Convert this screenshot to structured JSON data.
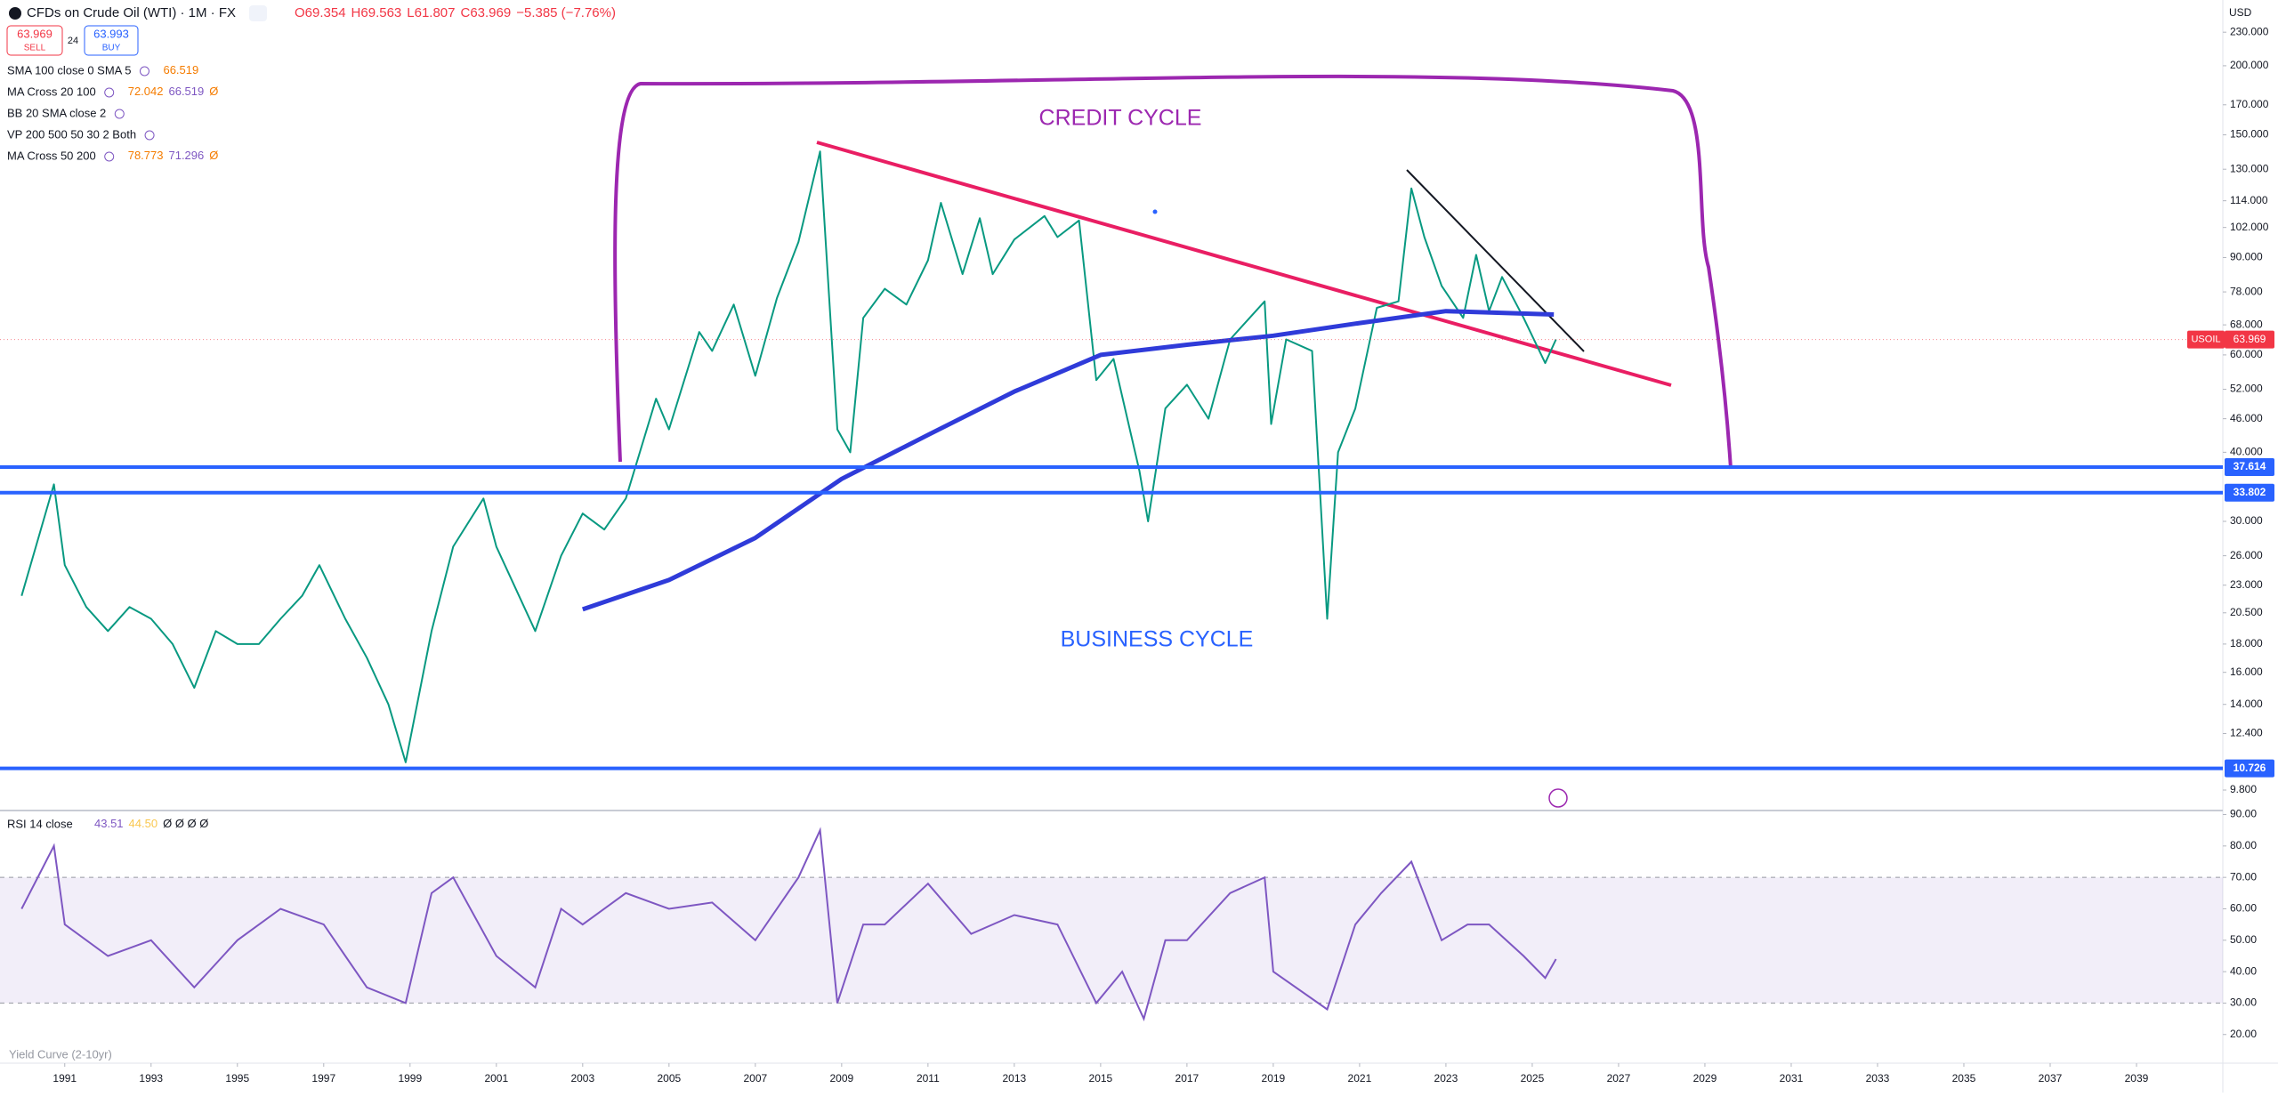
{
  "header": {
    "symbol": "CFDs on Crude Oil (WTI) · 1M · FX",
    "ohlc": [
      "O69.354",
      "H69.563",
      "L61.807",
      "C63.969"
    ],
    "change": "−5.385 (−7.76%)",
    "sell_price": "63.969",
    "sell": "SELL",
    "spread": "24",
    "buy_price": "63.993",
    "buy": "BUY",
    "currency": "USD"
  },
  "indicators": [
    {
      "name": "SMA 100 close 0 SMA 5",
      "values": [
        "66.519"
      ]
    },
    {
      "name": "MA Cross 20 100",
      "values": [
        "72.042",
        "66.519",
        "Ø"
      ]
    },
    {
      "name": "BB 20 SMA close 2",
      "values": []
    },
    {
      "name": "VP 200 500 50 30 2 Both",
      "values": []
    },
    {
      "name": "MA Cross 50 200",
      "values": [
        "78.773",
        "71.296",
        "Ø"
      ]
    }
  ],
  "annotations": {
    "credit": "CREDIT CYCLE",
    "business": "BUSINESS CYCLE",
    "yield_curve": "Yield Curve (2-10yr)"
  },
  "chart_data": [
    {
      "type": "line",
      "log_scale": true,
      "xlim": [
        1989.5,
        2041
      ],
      "ylim": [
        9,
        263
      ],
      "xticks": [
        1991,
        1993,
        1995,
        1997,
        1999,
        2001,
        2003,
        2005,
        2007,
        2009,
        2011,
        2013,
        2015,
        2017,
        2019,
        2021,
        2023,
        2025,
        2027,
        2029,
        2031,
        2033,
        2035,
        2037,
        2039
      ],
      "yticks": [
        {
          "value": 230,
          "label": "230.000"
        },
        {
          "value": 200,
          "label": "200.000"
        },
        {
          "value": 170,
          "label": "170.000"
        },
        {
          "value": 150,
          "label": "150.000"
        },
        {
          "value": 130,
          "label": "130.000"
        },
        {
          "value": 114,
          "label": "114.000"
        },
        {
          "value": 102,
          "label": "102.000"
        },
        {
          "value": 90,
          "label": "90.000"
        },
        {
          "value": 78,
          "label": "78.000"
        },
        {
          "value": 68,
          "label": "68.000"
        },
        {
          "value": 60,
          "label": "60.000"
        },
        {
          "value": 52,
          "label": "52.000"
        },
        {
          "value": 46,
          "label": "46.000"
        },
        {
          "value": 40,
          "label": "40.000"
        },
        {
          "value": 30,
          "label": "30.000"
        },
        {
          "value": 26,
          "label": "26.000"
        },
        {
          "value": 23,
          "label": "23.000"
        },
        {
          "value": 20.5,
          "label": "20.500"
        },
        {
          "value": 18,
          "label": "18.000"
        },
        {
          "value": 16,
          "label": "16.000"
        },
        {
          "value": 14,
          "label": "14.000"
        },
        {
          "value": 12.4,
          "label": "12.400"
        },
        {
          "value": 9.8,
          "label": "9.800"
        }
      ],
      "x": [
        1990.0,
        1990.75,
        1991.0,
        1991.5,
        1992.0,
        1992.5,
        1993.0,
        1993.5,
        1994.0,
        1994.5,
        1995.0,
        1995.5,
        1996.0,
        1996.5,
        1996.9,
        1997.5,
        1998.0,
        1998.5,
        1998.9,
        1999.5,
        2000.0,
        2000.7,
        2001.0,
        2001.9,
        2002.5,
        2003.0,
        2003.5,
        2004.0,
        2004.7,
        2005.0,
        2005.7,
        2006.0,
        2006.5,
        2007.0,
        2007.5,
        2008.0,
        2008.5,
        2008.9,
        2009.2,
        2009.5,
        2010.0,
        2010.5,
        2011.0,
        2011.3,
        2011.8,
        2012.2,
        2012.5,
        2013.0,
        2013.7,
        2014.0,
        2014.5,
        2014.9,
        2015.3,
        2015.9,
        2016.1,
        2016.5,
        2017.0,
        2017.5,
        2018.0,
        2018.8,
        2018.95,
        2019.3,
        2019.9,
        2020.25,
        2020.5,
        2020.9,
        2021.4,
        2021.9,
        2022.2,
        2022.5,
        2022.9,
        2023.4,
        2023.7,
        2024.0,
        2024.3,
        2024.8,
        2025.3,
        2025.55
      ],
      "series": [
        {
          "color": "#089981",
          "values": [
            22,
            35,
            25,
            21,
            19,
            21,
            20,
            18,
            15,
            19,
            18,
            18,
            20,
            22,
            25,
            20,
            17,
            14,
            11,
            19,
            27,
            33,
            27,
            19,
            26,
            31,
            29,
            33,
            50,
            44,
            66,
            61,
            74,
            55,
            76,
            96,
            140,
            44,
            40,
            70,
            79,
            74,
            89,
            113,
            84,
            106,
            84,
            97,
            107,
            98,
            105,
            54,
            59,
            37,
            30,
            48,
            53,
            46,
            64,
            75,
            45,
            64,
            61,
            20,
            40,
            48,
            73,
            75,
            120,
            98,
            80,
            70,
            91,
            72,
            83,
            70,
            58,
            64
          ]
        },
        {
          "color": "#2f3bd9",
          "x": [
            2003,
            2005,
            2007,
            2009,
            2011,
            2013,
            2015,
            2017,
            2019,
            2021,
            2023,
            2025.5
          ],
          "values": [
            20.8,
            23.5,
            28,
            35.8,
            43,
            51.5,
            60,
            62.6,
            65,
            68.5,
            72,
            71
          ]
        }
      ],
      "levels": [
        37.614,
        33.802,
        10.726
      ],
      "level_color": "#2962ff",
      "last": {
        "label": "USOIL",
        "value": 63.969,
        "color": "#f23645"
      }
    },
    {
      "type": "line",
      "title": "RSI 14 close",
      "legend_values": [
        "43.51",
        "44.50",
        "Ø Ø Ø Ø"
      ],
      "xlim": [
        1989.5,
        2041
      ],
      "ylim": [
        12,
        91
      ],
      "yticks": [
        {
          "value": 90,
          "label": "90.00"
        },
        {
          "value": 80,
          "label": "80.00"
        },
        {
          "value": 70,
          "label": "70.00"
        },
        {
          "value": 60,
          "label": "60.00"
        },
        {
          "value": 50,
          "label": "50.00"
        },
        {
          "value": 40,
          "label": "40.00"
        },
        {
          "value": 30,
          "label": "30.00"
        },
        {
          "value": 20,
          "label": "20.00"
        }
      ],
      "band": [
        30,
        70
      ],
      "x": [
        1990,
        1990.75,
        1991,
        1992,
        1993,
        1994,
        1995,
        1996,
        1997,
        1998,
        1998.9,
        1999.5,
        2000,
        2001,
        2001.9,
        2002.5,
        2003,
        2004,
        2005,
        2006,
        2007,
        2008,
        2008.5,
        2008.9,
        2009.5,
        2010,
        2011,
        2012,
        2013,
        2014,
        2014.9,
        2015.5,
        2016,
        2016.5,
        2017,
        2018,
        2018.8,
        2019,
        2020.25,
        2020.9,
        2021.5,
        2022.2,
        2022.9,
        2023.5,
        2024,
        2024.8,
        2025.3,
        2025.55
      ],
      "series": [
        {
          "color": "#7e57c2",
          "values": [
            60,
            80,
            55,
            45,
            50,
            35,
            50,
            60,
            55,
            35,
            30,
            65,
            70,
            45,
            35,
            60,
            55,
            65,
            60,
            62,
            50,
            70,
            85,
            30,
            55,
            55,
            68,
            52,
            58,
            55,
            30,
            40,
            25,
            50,
            50,
            65,
            70,
            40,
            28,
            55,
            65,
            75,
            50,
            55,
            55,
            45,
            38,
            44
          ]
        }
      ]
    }
  ]
}
